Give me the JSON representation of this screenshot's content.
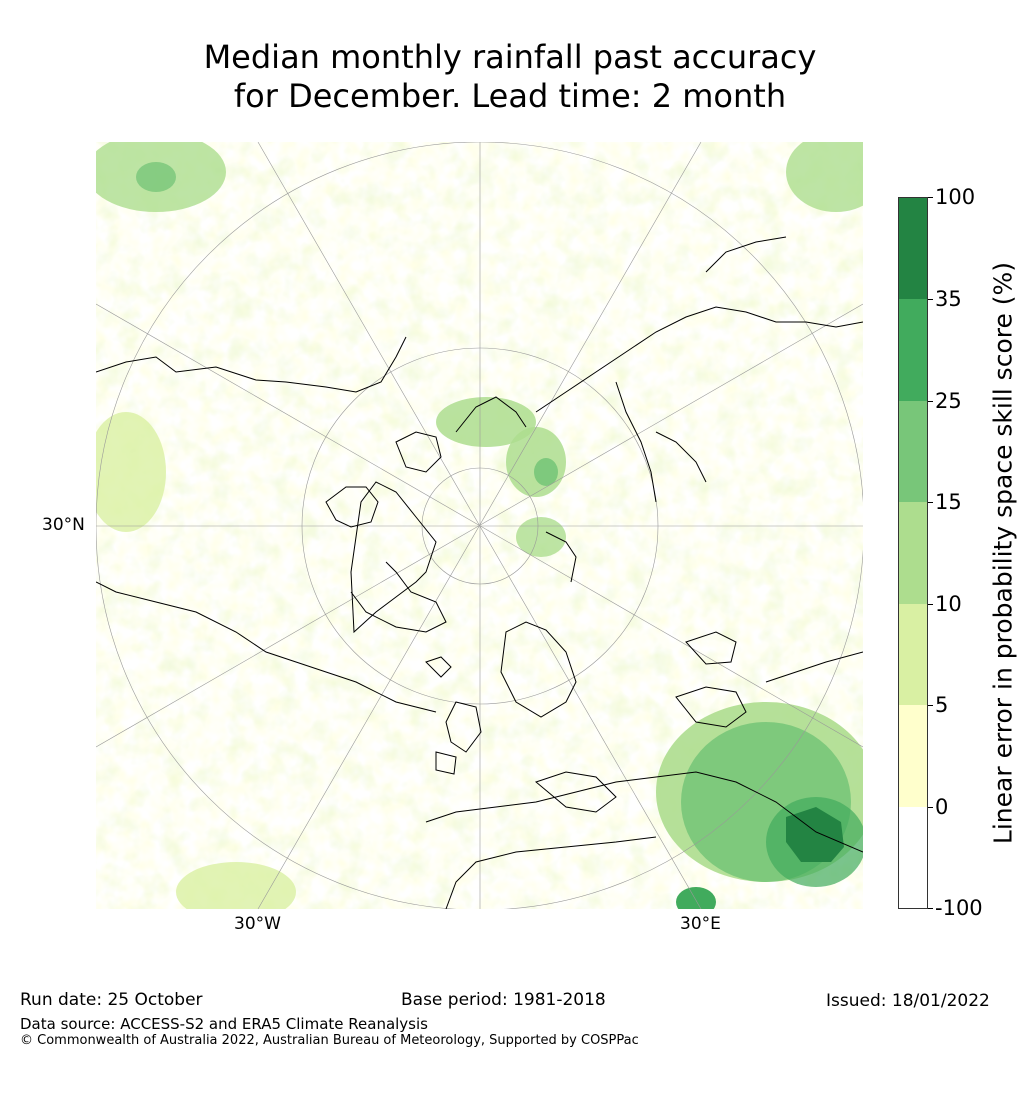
{
  "title": {
    "line1": "Median monthly rainfall past accuracy",
    "line2": "for December. Lead time: 2 month"
  },
  "map": {
    "projection": "north-polar-stereographic",
    "labels": {
      "lat_30n": "30°N",
      "lon_30w": "30°W",
      "lon_30e": "30°E"
    }
  },
  "colorbar": {
    "title": "Linear error in probability space skill score (%)",
    "ticks": [
      "100",
      "35",
      "25",
      "15",
      "10",
      "5",
      "0",
      "-100"
    ],
    "bins": [
      {
        "range": "-100 to 0",
        "color": "#ffffff"
      },
      {
        "range": "0 to 5",
        "color": "#ffffcc"
      },
      {
        "range": "5 to 10",
        "color": "#d9f0a3"
      },
      {
        "range": "10 to 15",
        "color": "#addd8e"
      },
      {
        "range": "15 to 25",
        "color": "#78c679"
      },
      {
        "range": "25 to 35",
        "color": "#41ab5d"
      },
      {
        "range": "35 to 100",
        "color": "#238443"
      }
    ]
  },
  "footer": {
    "run_date": "Run date: 25 October",
    "base_period": "Base period: 1981-2018",
    "issued": "Issued: 18/01/2022",
    "data_source": "Data source: ACCESS-S2 and ERA5 Climate Reanalysis",
    "copyright": "© Commonwealth of Australia 2022, Australian Bureau of Meteorology, Supported by COSPPac"
  }
}
